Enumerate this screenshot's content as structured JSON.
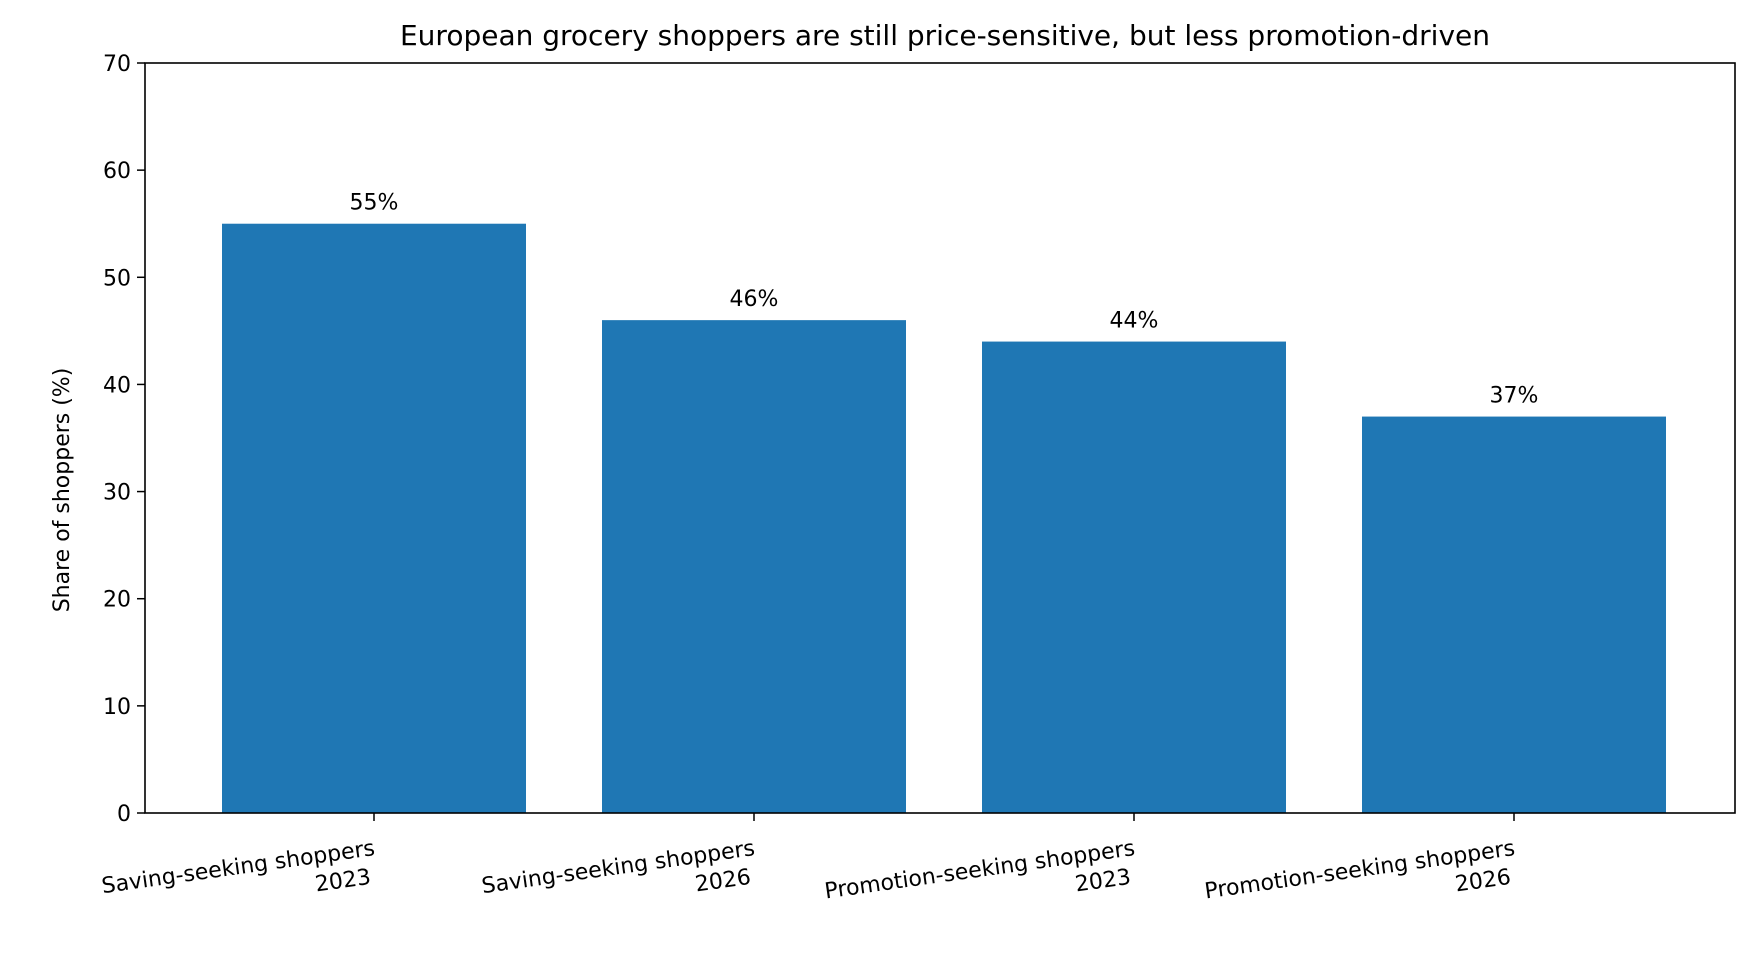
{
  "chart_data": {
    "type": "bar",
    "title": "European grocery shoppers are still price-sensitive, but less promotion-driven",
    "xlabel": "",
    "ylabel": "Share of shoppers (%)",
    "ylim": [
      0,
      70
    ],
    "yticks": [
      "0",
      "10",
      "20",
      "30",
      "40",
      "50",
      "60",
      "70"
    ],
    "categories": [
      "Saving-seeking shoppers\n2023",
      "Saving-seeking shoppers\n2026",
      "Promotion-seeking shoppers\n2023",
      "Promotion-seeking shoppers\n2026"
    ],
    "values": [
      55,
      46,
      44,
      37
    ],
    "data_labels": [
      "55%",
      "46%",
      "44%",
      "37%"
    ],
    "bar_color": "#1f77b4",
    "grid": false,
    "legend": "none"
  }
}
